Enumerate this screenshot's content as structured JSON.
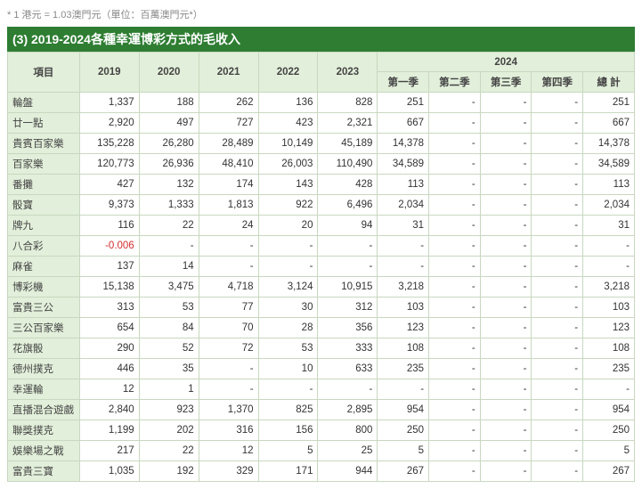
{
  "note": "* 1 港元 = 1.03澳門元（單位：百萬澳門元*）",
  "title": "(3) 2019-2024各種幸運博彩方式的毛收入",
  "headers": {
    "item": "項目",
    "y2019": "2019",
    "y2020": "2020",
    "y2021": "2021",
    "y2022": "2022",
    "y2023": "2023",
    "y2024": "2024",
    "q1": "第一季",
    "q2": "第二季",
    "q3": "第三季",
    "q4": "第四季",
    "total": "總 計"
  },
  "rows": [
    {
      "name": "輪盤",
      "y19": "1,337",
      "y20": "188",
      "y21": "262",
      "y22": "136",
      "y23": "828",
      "q1": "251",
      "q2": "-",
      "q3": "-",
      "q4": "-",
      "tot": "251"
    },
    {
      "name": "廿一點",
      "y19": "2,920",
      "y20": "497",
      "y21": "727",
      "y22": "423",
      "y23": "2,321",
      "q1": "667",
      "q2": "-",
      "q3": "-",
      "q4": "-",
      "tot": "667"
    },
    {
      "name": "貴賓百家樂",
      "y19": "135,228",
      "y20": "26,280",
      "y21": "28,489",
      "y22": "10,149",
      "y23": "45,189",
      "q1": "14,378",
      "q2": "-",
      "q3": "-",
      "q4": "-",
      "tot": "14,378"
    },
    {
      "name": "百家樂",
      "y19": "120,773",
      "y20": "26,936",
      "y21": "48,410",
      "y22": "26,003",
      "y23": "110,490",
      "q1": "34,589",
      "q2": "-",
      "q3": "-",
      "q4": "-",
      "tot": "34,589"
    },
    {
      "name": "番攤",
      "y19": "427",
      "y20": "132",
      "y21": "174",
      "y22": "143",
      "y23": "428",
      "q1": "113",
      "q2": "-",
      "q3": "-",
      "q4": "-",
      "tot": "113"
    },
    {
      "name": "骰寶",
      "y19": "9,373",
      "y20": "1,333",
      "y21": "1,813",
      "y22": "922",
      "y23": "6,496",
      "q1": "2,034",
      "q2": "-",
      "q3": "-",
      "q4": "-",
      "tot": "2,034"
    },
    {
      "name": "牌九",
      "y19": "116",
      "y20": "22",
      "y21": "24",
      "y22": "20",
      "y23": "94",
      "q1": "31",
      "q2": "-",
      "q3": "-",
      "q4": "-",
      "tot": "31"
    },
    {
      "name": "八合彩",
      "y19": "-0.006",
      "y20": "-",
      "y21": "-",
      "y22": "-",
      "y23": "-",
      "q1": "-",
      "q2": "-",
      "q3": "-",
      "q4": "-",
      "tot": "-",
      "neg19": true
    },
    {
      "name": "麻雀",
      "y19": "137",
      "y20": "14",
      "y21": "-",
      "y22": "-",
      "y23": "-",
      "q1": "-",
      "q2": "-",
      "q3": "-",
      "q4": "-",
      "tot": "-"
    },
    {
      "name": "博彩機",
      "y19": "15,138",
      "y20": "3,475",
      "y21": "4,718",
      "y22": "3,124",
      "y23": "10,915",
      "q1": "3,218",
      "q2": "-",
      "q3": "-",
      "q4": "-",
      "tot": "3,218"
    },
    {
      "name": "富貴三公",
      "y19": "313",
      "y20": "53",
      "y21": "77",
      "y22": "30",
      "y23": "312",
      "q1": "103",
      "q2": "-",
      "q3": "-",
      "q4": "-",
      "tot": "103"
    },
    {
      "name": "三公百家樂",
      "y19": "654",
      "y20": "84",
      "y21": "70",
      "y22": "28",
      "y23": "356",
      "q1": "123",
      "q2": "-",
      "q3": "-",
      "q4": "-",
      "tot": "123"
    },
    {
      "name": "花旗骰",
      "y19": "290",
      "y20": "52",
      "y21": "72",
      "y22": "53",
      "y23": "333",
      "q1": "108",
      "q2": "-",
      "q3": "-",
      "q4": "-",
      "tot": "108"
    },
    {
      "name": "德州撲克",
      "y19": "446",
      "y20": "35",
      "y21": "-",
      "y22": "10",
      "y23": "633",
      "q1": "235",
      "q2": "-",
      "q3": "-",
      "q4": "-",
      "tot": "235"
    },
    {
      "name": "幸運輪",
      "y19": "12",
      "y20": "1",
      "y21": "-",
      "y22": "-",
      "y23": "-",
      "q1": "-",
      "q2": "-",
      "q3": "-",
      "q4": "-",
      "tot": "-"
    },
    {
      "name": "直播混合遊戲",
      "y19": "2,840",
      "y20": "923",
      "y21": "1,370",
      "y22": "825",
      "y23": "2,895",
      "q1": "954",
      "q2": "-",
      "q3": "-",
      "q4": "-",
      "tot": "954"
    },
    {
      "name": "聯獎撲克",
      "y19": "1,199",
      "y20": "202",
      "y21": "316",
      "y22": "156",
      "y23": "800",
      "q1": "250",
      "q2": "-",
      "q3": "-",
      "q4": "-",
      "tot": "250"
    },
    {
      "name": "娛樂場之戰",
      "y19": "217",
      "y20": "22",
      "y21": "12",
      "y22": "5",
      "y23": "25",
      "q1": "5",
      "q2": "-",
      "q3": "-",
      "q4": "-",
      "tot": "5"
    },
    {
      "name": "富貴三寶",
      "y19": "1,035",
      "y20": "192",
      "y21": "329",
      "y22": "171",
      "y23": "944",
      "q1": "267",
      "q2": "-",
      "q3": "-",
      "q4": "-",
      "tot": "267"
    }
  ]
}
